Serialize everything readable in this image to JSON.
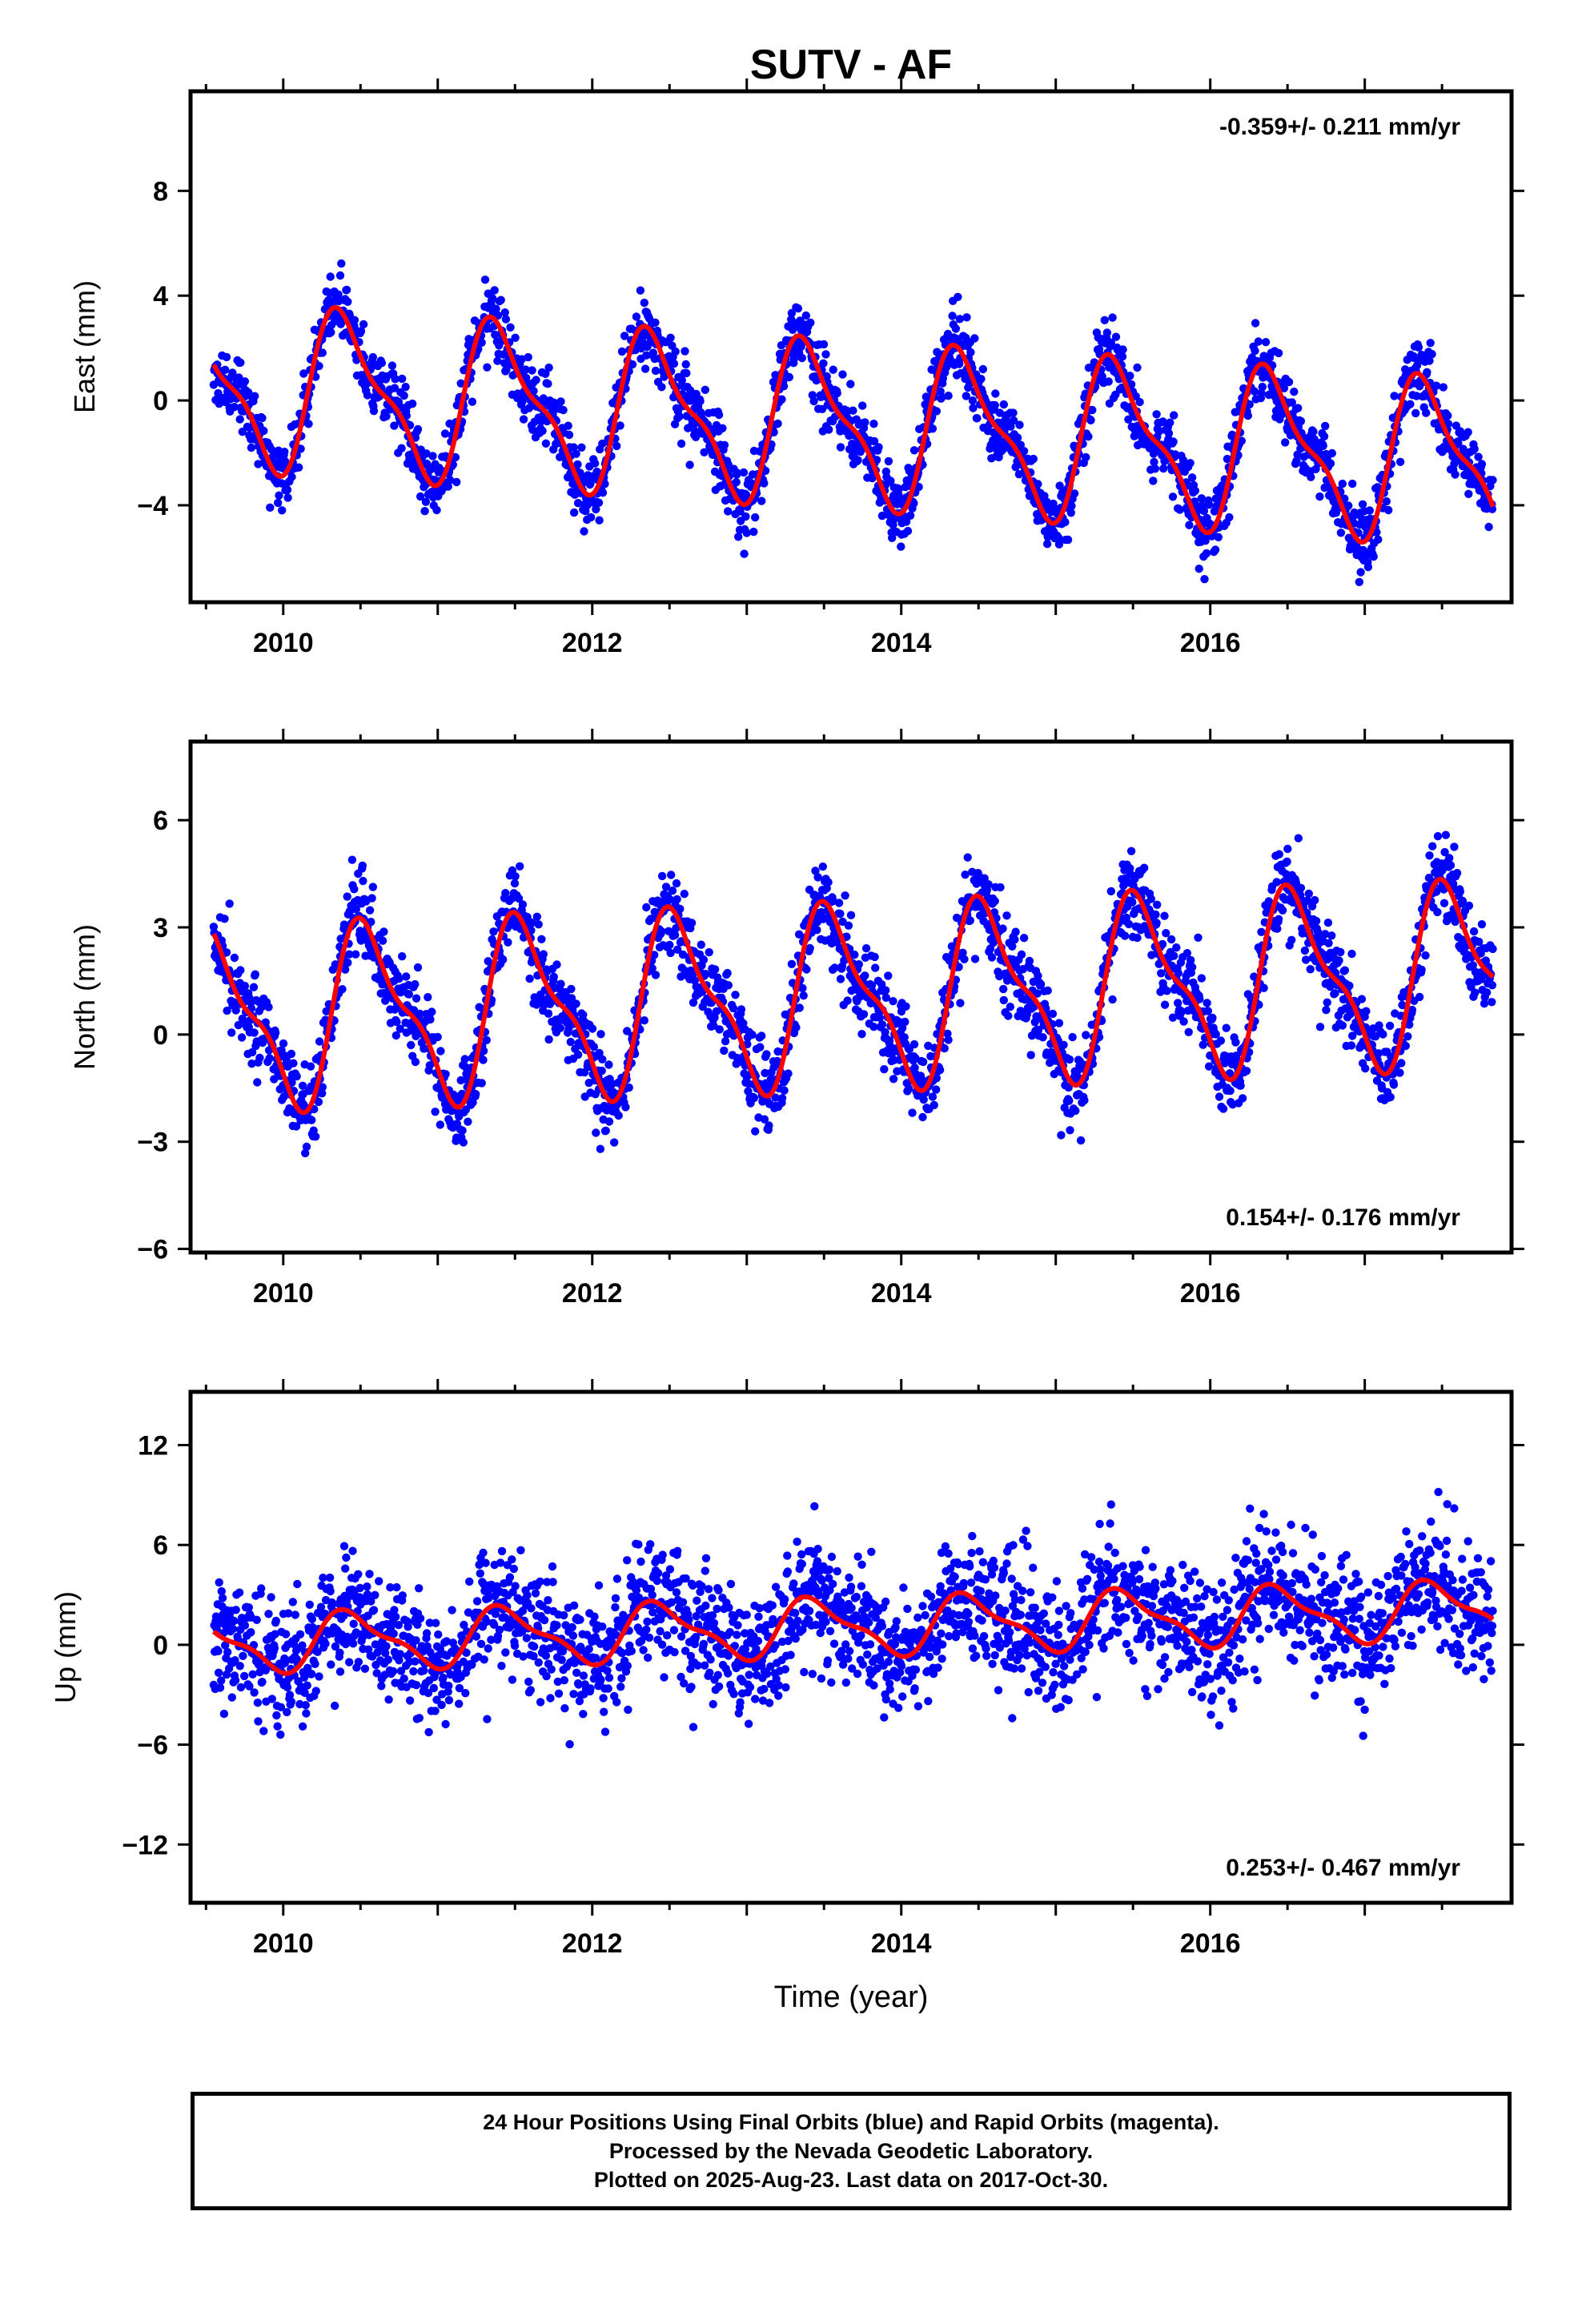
{
  "page_title": "SUTV - AF",
  "chart_data": [
    {
      "type": "scatter",
      "title": "SUTV - AF",
      "xlabel": "",
      "ylabel": "East (mm)",
      "xlim": [
        2009.4,
        2017.95
      ],
      "ylim": [
        -7.7,
        11.8
      ],
      "xticks": [
        2010,
        2012,
        2014,
        2016
      ],
      "xtick_labels": [
        "2010",
        "2012",
        "2014",
        "2016"
      ],
      "yticks": [
        -4,
        0,
        4,
        8
      ],
      "ytick_labels": [
        "−4",
        "0",
        "4",
        "8"
      ],
      "rate_label": "-0.359+/- 0.211 mm/yr",
      "rate_position": "top-right",
      "grid": false,
      "series": [
        {
          "role": "24 Hour Positions",
          "color": "#0000ff",
          "mean": 0.6,
          "trend": -0.359,
          "amp": 2.8,
          "phase": 0.16,
          "noise": 1.2,
          "seed": 11
        },
        {
          "role": "model",
          "color": "#ff0000",
          "offset": 0.6,
          "trend": -0.359,
          "amp": 2.8,
          "phase": 0.16
        }
      ]
    },
    {
      "type": "scatter",
      "title": "",
      "xlabel": "",
      "ylabel": "North (mm)",
      "xlim": [
        2009.4,
        2017.95
      ],
      "ylim": [
        -6.1,
        8.2
      ],
      "xticks": [
        2010,
        2012,
        2014,
        2016
      ],
      "xtick_labels": [
        "2010",
        "2012",
        "2014",
        "2016"
      ],
      "yticks": [
        -6,
        -3,
        0,
        3,
        6
      ],
      "ytick_labels": [
        "−6",
        "−3",
        "0",
        "3",
        "6"
      ],
      "rate_label": "0.154+/- 0.176 mm/yr",
      "rate_position": "bottom-right",
      "grid": false,
      "series": [
        {
          "role": "24 Hour Positions",
          "color": "#0000ff",
          "mean": 0.4,
          "trend": 0.154,
          "amp": 2.3,
          "phase": 0.31,
          "noise": 1.1,
          "seed": 23
        },
        {
          "role": "model",
          "color": "#ff0000",
          "offset": 0.4,
          "trend": 0.154,
          "amp": 2.3,
          "phase": 0.31
        }
      ]
    },
    {
      "type": "scatter",
      "title": "",
      "xlabel": "Time (year)",
      "ylabel": "Up (mm)",
      "xlim": [
        2009.4,
        2017.95
      ],
      "ylim": [
        -15.5,
        15.2
      ],
      "xticks": [
        2010,
        2012,
        2014,
        2016
      ],
      "xtick_labels": [
        "2010",
        "2012",
        "2014",
        "2016"
      ],
      "yticks": [
        -12,
        -6,
        0,
        6,
        12
      ],
      "ytick_labels": [
        "−12",
        "−6",
        "0",
        "6",
        "12"
      ],
      "rate_label": "0.253+/- 0.467 mm/yr",
      "rate_position": "bottom-right",
      "grid": false,
      "series": [
        {
          "role": "24 Hour Positions",
          "color": "#0000ff",
          "mean": 0.0,
          "trend": 0.253,
          "amp": 1.6,
          "phase": 0.2,
          "noise": 3.4,
          "seed": 37
        },
        {
          "role": "model",
          "color": "#ff0000",
          "offset": 0.0,
          "trend": 0.253,
          "amp": 1.6,
          "phase": 0.2
        }
      ]
    }
  ],
  "footer": {
    "line1": "24 Hour Positions Using Final Orbits (blue) and Rapid Orbits (magenta).",
    "line2": "Processed by the Nevada Geodetic Laboratory.",
    "line3": "Plotted on 2025-Aug-23. Last data on 2017-Oct-30."
  }
}
